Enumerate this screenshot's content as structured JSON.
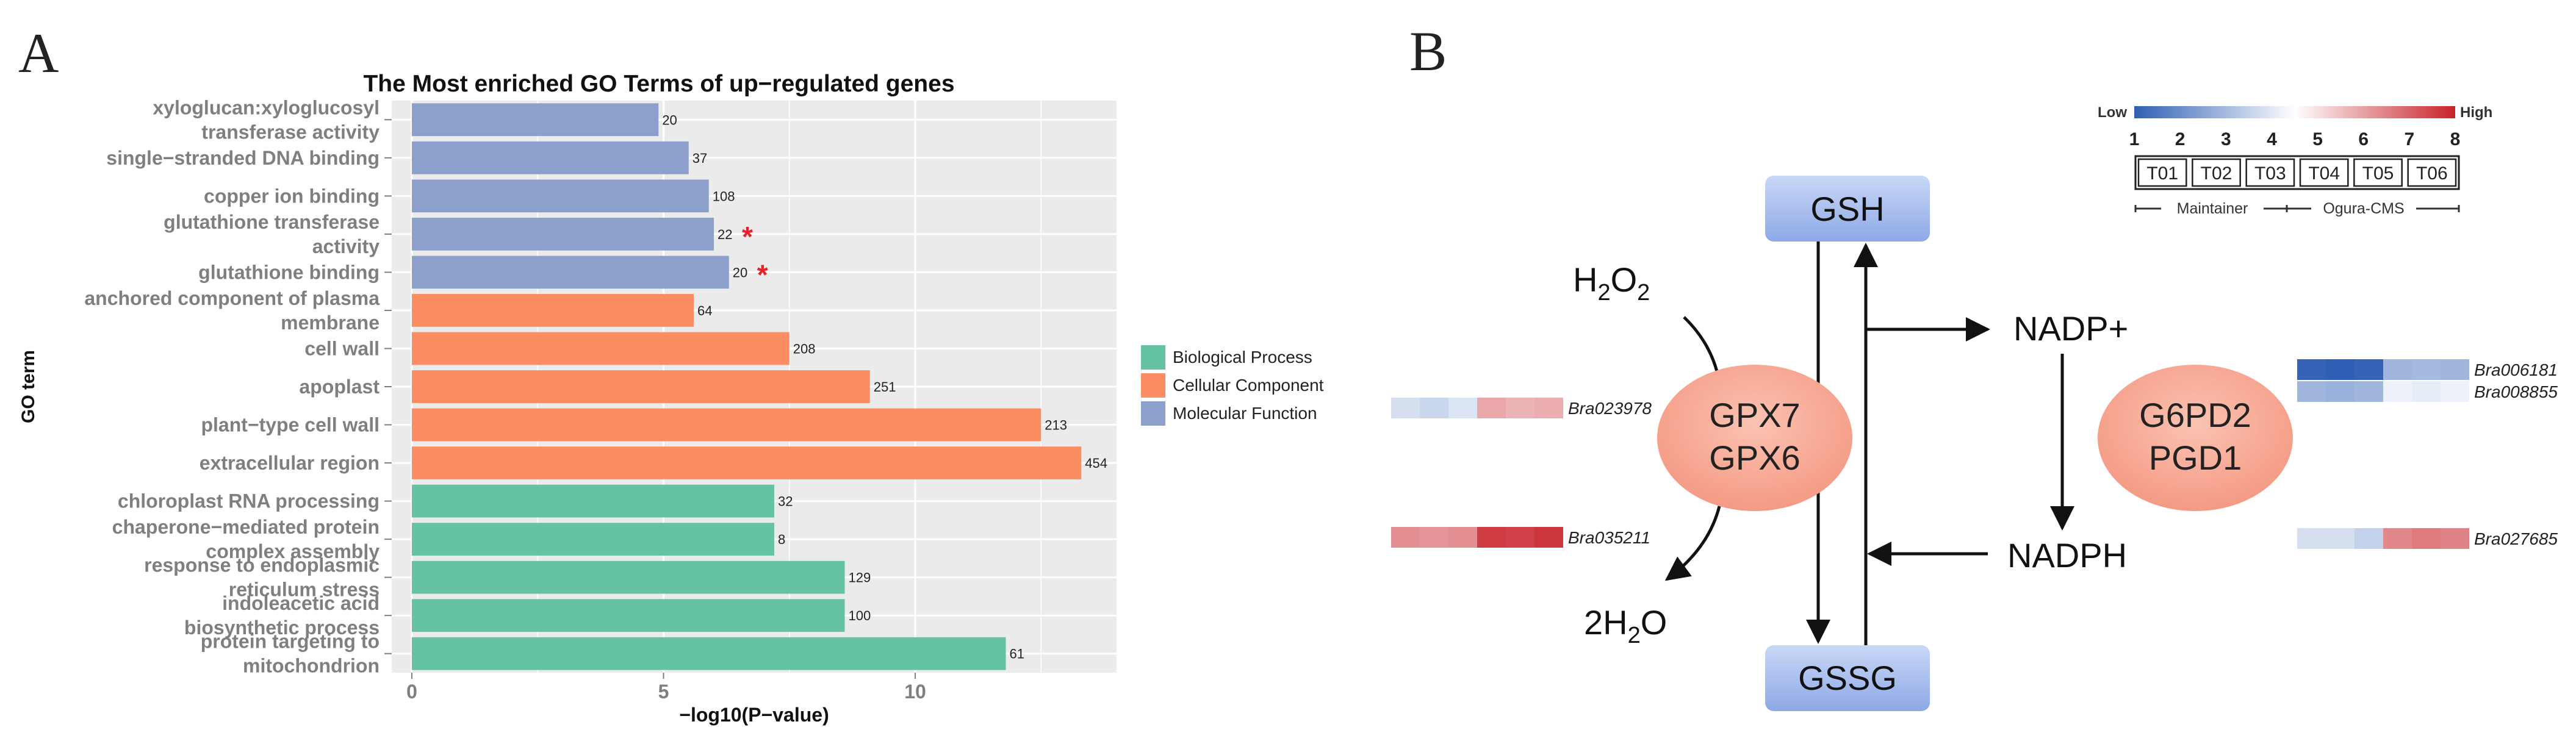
{
  "panel_a": {
    "letter": "A",
    "chart_data": {
      "type": "bar",
      "orientation": "horizontal",
      "title": "The Most enriched GO Terms of up−regulated genes",
      "xlabel": "−log10(P−value)",
      "ylabel": "GO term",
      "xlim": [
        -0.4,
        14
      ],
      "xticks": [
        "0",
        "5",
        "10"
      ],
      "grid": true,
      "legend_position": "right",
      "legend": [
        {
          "name": "Biological Process",
          "color": "#66C2A5"
        },
        {
          "name": "Cellular Component",
          "color": "#FC8D62"
        },
        {
          "name": "Molecular Function",
          "color": "#8DA0CB"
        }
      ],
      "bars": [
        {
          "term": [
            "xyloglucan:xyloglucosyl",
            "transferase activity"
          ],
          "value": 4.9,
          "count": "20",
          "category": "Molecular Function",
          "star": false
        },
        {
          "term": [
            "single−stranded DNA binding"
          ],
          "value": 5.5,
          "count": "37",
          "category": "Molecular Function",
          "star": false
        },
        {
          "term": [
            "copper ion binding"
          ],
          "value": 5.9,
          "count": "108",
          "category": "Molecular Function",
          "star": false
        },
        {
          "term": [
            "glutathione transferase",
            "activity"
          ],
          "value": 6.0,
          "count": "22",
          "category": "Molecular Function",
          "star": true
        },
        {
          "term": [
            "glutathione binding"
          ],
          "value": 6.3,
          "count": "20",
          "category": "Molecular Function",
          "star": true
        },
        {
          "term": [
            "anchored component of plasma",
            "membrane"
          ],
          "value": 5.6,
          "count": "64",
          "category": "Cellular Component",
          "star": false
        },
        {
          "term": [
            "cell wall"
          ],
          "value": 7.5,
          "count": "208",
          "category": "Cellular Component",
          "star": false
        },
        {
          "term": [
            "apoplast"
          ],
          "value": 9.1,
          "count": "251",
          "category": "Cellular Component",
          "star": false
        },
        {
          "term": [
            "plant−type cell wall"
          ],
          "value": 12.5,
          "count": "213",
          "category": "Cellular Component",
          "star": false
        },
        {
          "term": [
            "extracellular region"
          ],
          "value": 13.3,
          "count": "454",
          "category": "Cellular Component",
          "star": false
        },
        {
          "term": [
            "chloroplast RNA processing"
          ],
          "value": 7.2,
          "count": "32",
          "category": "Biological Process",
          "star": false
        },
        {
          "term": [
            "chaperone−mediated protein",
            "complex assembly"
          ],
          "value": 7.2,
          "count": "8",
          "category": "Biological Process",
          "star": false
        },
        {
          "term": [
            "response to endoplasmic",
            "reticulum stress"
          ],
          "value": 8.6,
          "count": "129",
          "category": "Biological Process",
          "star": false
        },
        {
          "term": [
            "indoleacetic acid",
            "biosynthetic process"
          ],
          "value": 8.6,
          "count": "100",
          "category": "Biological Process",
          "star": false
        },
        {
          "term": [
            "protein targeting to",
            "mitochondrion"
          ],
          "value": 11.8,
          "count": "61",
          "category": "Biological Process",
          "star": false
        }
      ],
      "star_symbol": "*",
      "star_color": "#E8202A"
    }
  },
  "panel_b": {
    "letter": "B",
    "color_scale": {
      "low_label": "Low",
      "high_label": "High",
      "low_color": "#2F5FB5",
      "mid_color": "#FFFFFF",
      "high_color": "#C8232A",
      "ticks": [
        "1",
        "2",
        "3",
        "4",
        "5",
        "6",
        "7",
        "8"
      ],
      "samples": [
        "T01",
        "T02",
        "T03",
        "T04",
        "T05",
        "T06"
      ],
      "groups": [
        "Maintainer",
        "Ogura-CMS"
      ]
    },
    "nodes": {
      "gsh": "GSH",
      "gssg": "GSSG",
      "h2o2": {
        "base": "H",
        "sub1": "2",
        "mid": "O",
        "sub2": "2"
      },
      "h2o": {
        "pre": "2H",
        "sub": "2",
        "post": "O"
      },
      "nadp": "NADP+",
      "nadph": "NADPH",
      "enzyme1": [
        "GPX7",
        "GPX6"
      ],
      "enzyme2": [
        "G6PD2",
        "PGD1"
      ]
    },
    "heatmap_colors": {
      "gsh_box": "#A9C0EE",
      "enzyme_fill": "#F6A996"
    },
    "heatmaps": [
      {
        "gene": "Bra023978",
        "levels": [
          3.8,
          3.6,
          3.9,
          5.9,
          5.7,
          5.8
        ]
      },
      {
        "gene": "Bra035211",
        "levels": [
          6.3,
          6.2,
          6.3,
          7.6,
          7.5,
          7.7
        ]
      },
      {
        "gene": "Bra006181",
        "levels": [
          1.1,
          1.0,
          1.1,
          2.9,
          3.0,
          2.9
        ]
      },
      {
        "gene": "Bra008855",
        "levels": [
          2.9,
          2.8,
          2.9,
          4.2,
          4.1,
          4.2
        ]
      },
      {
        "gene": "Bra027685",
        "levels": [
          3.8,
          3.8,
          3.5,
          6.4,
          6.6,
          6.5
        ]
      }
    ]
  }
}
